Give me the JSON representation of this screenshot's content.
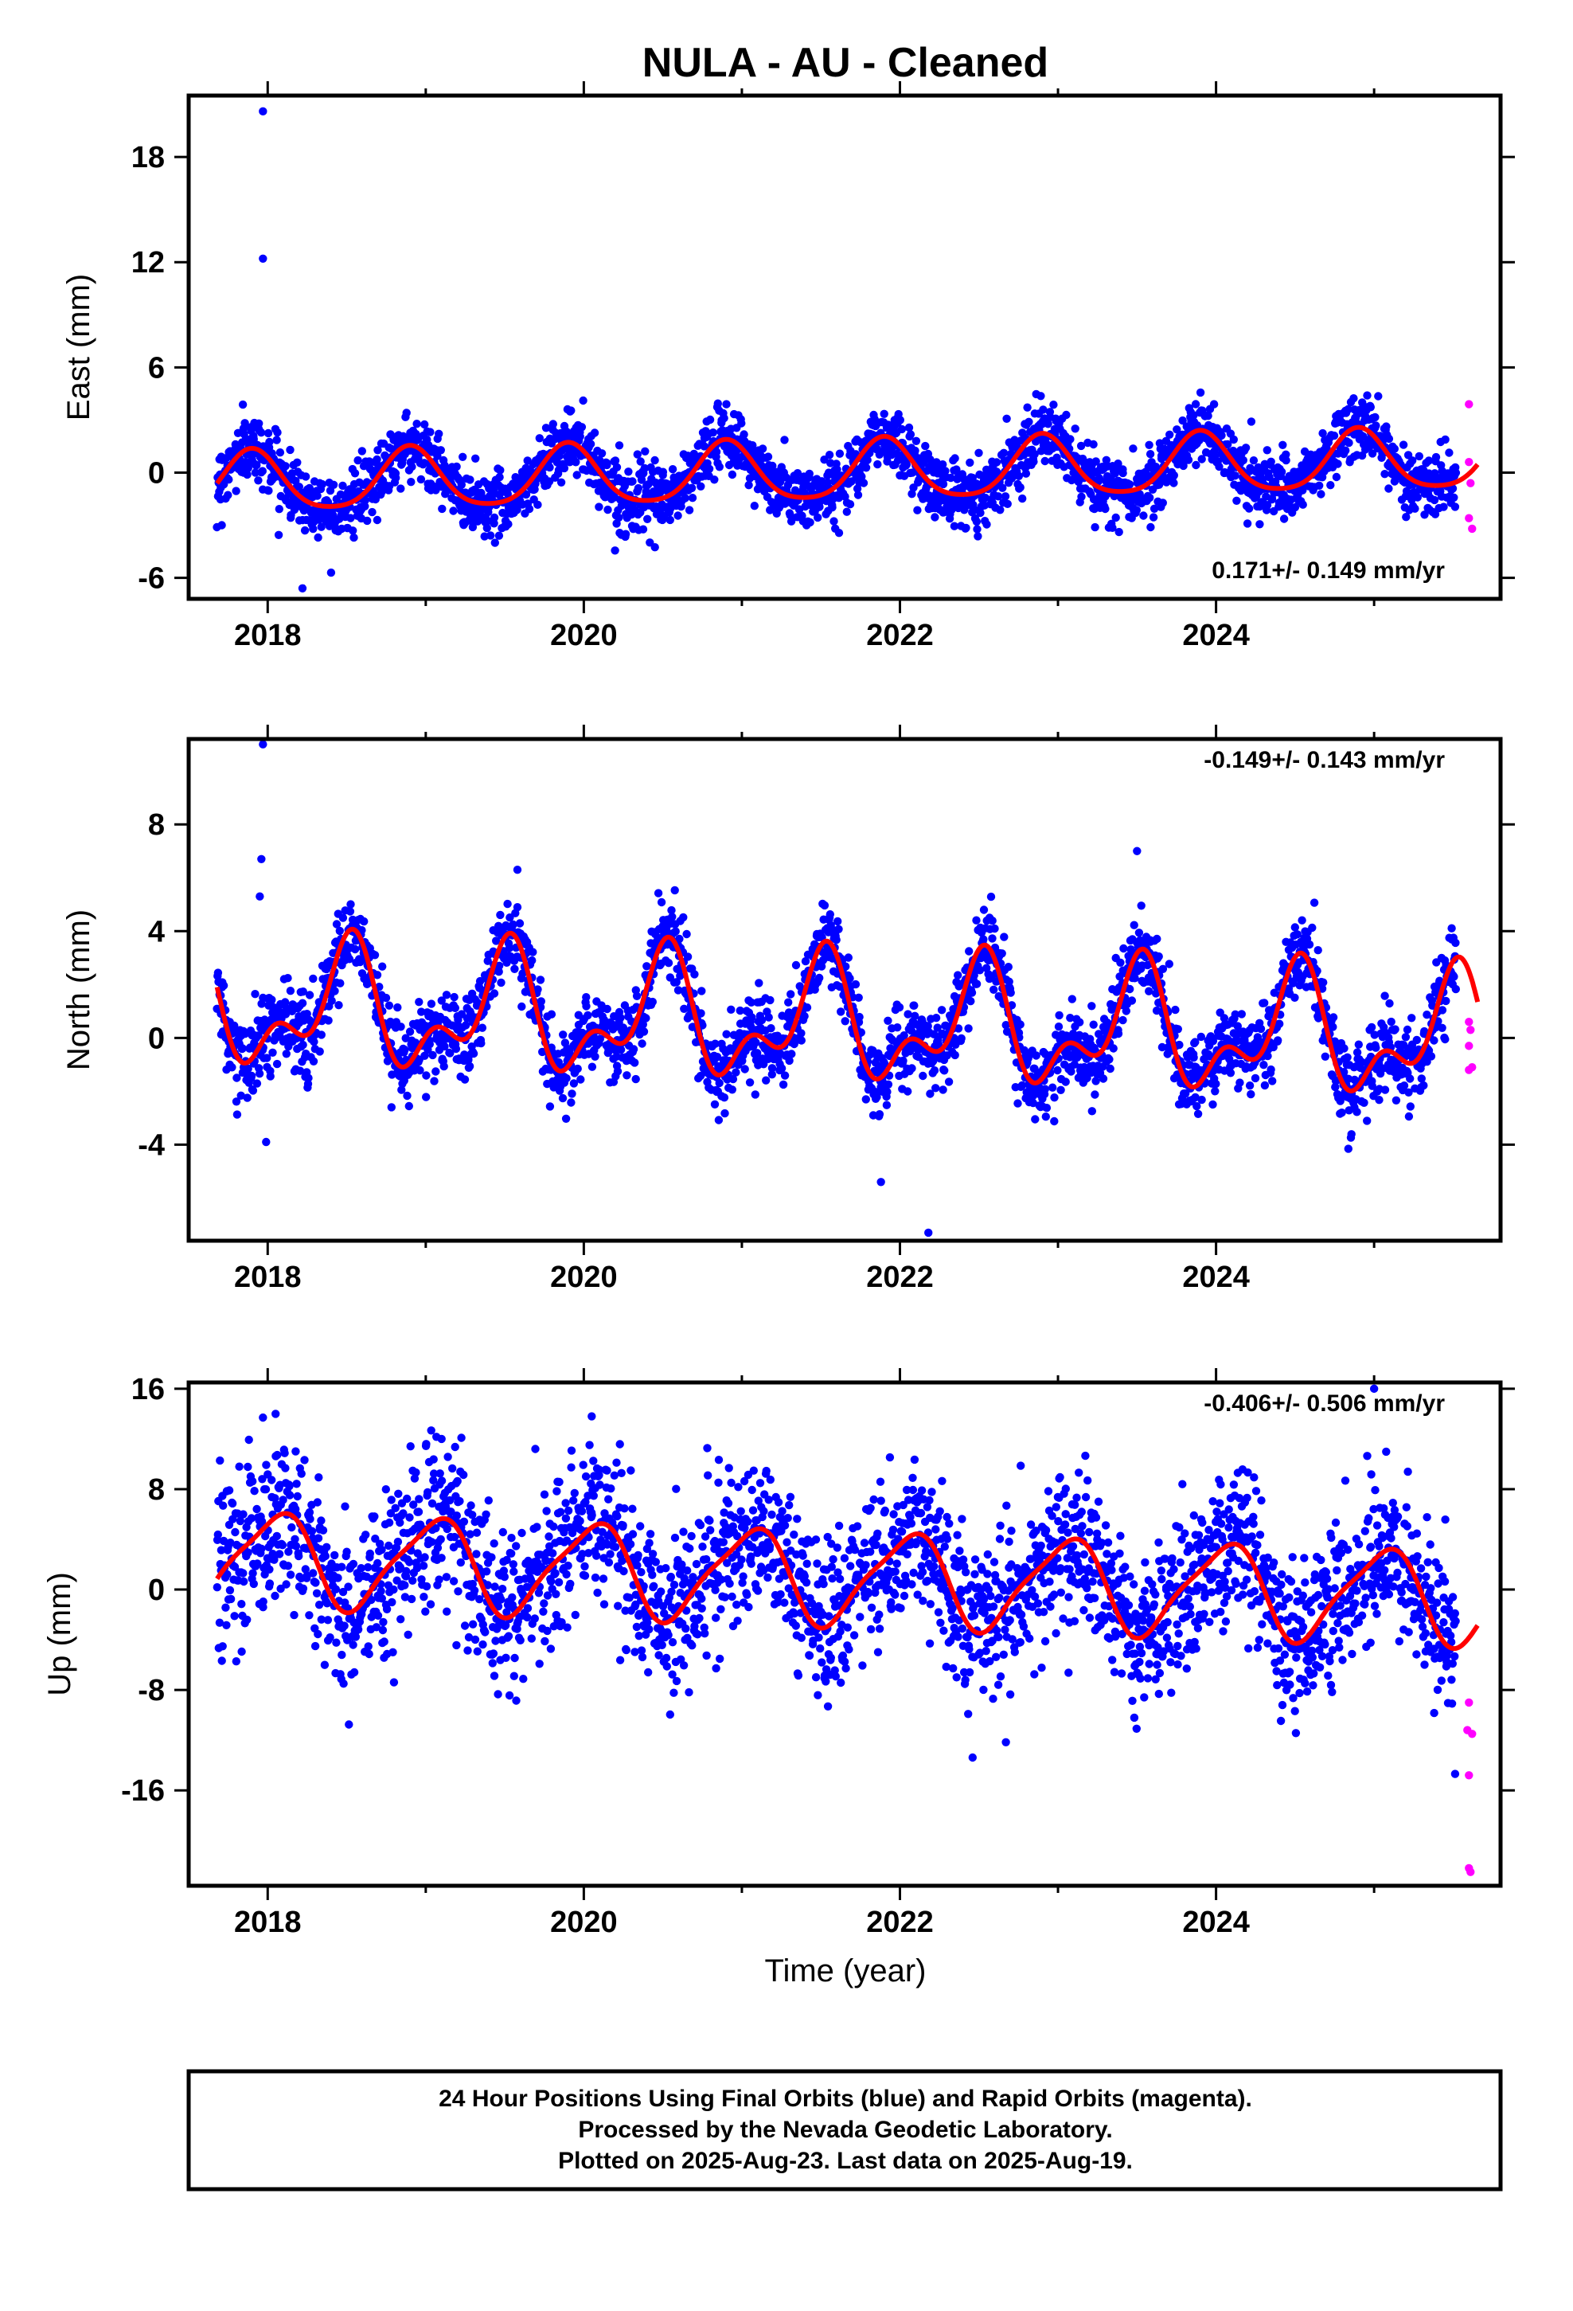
{
  "title": "NULA  - AU - Cleaned",
  "xlabel": "Time (year)",
  "x_ticks": [
    "2018",
    "2020",
    "2022",
    "2024"
  ],
  "colors": {
    "final": "#0000ff",
    "rapid": "#ff00ff",
    "model": "#ff0000",
    "axis": "#000000"
  },
  "footer": {
    "line1": "24 Hour Positions Using Final Orbits (blue) and Rapid Orbits (magenta).",
    "line2": "Processed by the Nevada Geodetic Laboratory.",
    "line3": "Plotted on 2025-Aug-23. Last data on 2025-Aug-19."
  },
  "chart_data": [
    {
      "type": "scatter",
      "component": "east",
      "ylabel": "East (mm)",
      "rate": "0.171+/- 0.149 mm/yr",
      "xlim": [
        2017.5,
        2025.8
      ],
      "ylim": [
        -7.2,
        21.5
      ],
      "y_ticks": [
        "18",
        "12",
        "6",
        "0",
        "-6"
      ],
      "y_tick_values": [
        18,
        12,
        6,
        0,
        -6
      ],
      "model": {
        "mean": 0.0,
        "rate": 0.171,
        "annual_amp": 1.7,
        "annual_peak": 2018.9,
        "semi_amp": 0.3,
        "semi_peak": 2018.4,
        "noise": 0.9
      },
      "final_span": [
        2017.68,
        2025.52
      ],
      "outliers": [
        [
          2017.97,
          20.6
        ],
        [
          2017.97,
          12.2
        ],
        [
          2018.22,
          -6.6
        ]
      ],
      "rapid_points": [
        [
          2025.6,
          3.9
        ],
        [
          2025.6,
          0.6
        ],
        [
          2025.61,
          -0.6
        ],
        [
          2025.6,
          -2.6
        ],
        [
          2025.62,
          -3.2
        ]
      ]
    },
    {
      "type": "scatter",
      "component": "north",
      "ylabel": "North (mm)",
      "rate": "-0.149+/- 0.143 mm/yr",
      "xlim": [
        2017.5,
        2025.8
      ],
      "ylim": [
        -7.6,
        11.2
      ],
      "y_ticks": [
        "8",
        "4",
        "0",
        "-4"
      ],
      "y_tick_values": [
        8,
        4,
        0,
        -4
      ],
      "model": {
        "mean": 0.6,
        "rate": -0.149,
        "annual_amp": 1.9,
        "annual_peak": 2018.5,
        "semi_amp": 1.2,
        "semi_peak": 2018.55,
        "noise": 0.75
      },
      "final_span": [
        2017.68,
        2025.52
      ],
      "outliers": [
        [
          2017.97,
          11.0
        ],
        [
          2017.96,
          6.7
        ],
        [
          2017.95,
          5.3
        ],
        [
          2017.99,
          -3.9
        ],
        [
          2021.88,
          -5.4
        ],
        [
          2022.18,
          -7.3
        ],
        [
          2019.58,
          6.3
        ],
        [
          2023.5,
          7.0
        ]
      ],
      "rapid_points": [
        [
          2025.6,
          0.6
        ],
        [
          2025.61,
          0.3
        ],
        [
          2025.6,
          -0.3
        ],
        [
          2025.62,
          -1.1
        ],
        [
          2025.6,
          -1.2
        ]
      ]
    },
    {
      "type": "scatter",
      "component": "up",
      "ylabel": "Up (mm)",
      "rate": "-0.406+/- 0.506 mm/yr",
      "xlim": [
        2017.5,
        2025.8
      ],
      "ylim": [
        -23.6,
        16.5
      ],
      "y_ticks": [
        "16",
        "8",
        "0",
        "-8",
        "-16"
      ],
      "y_tick_values": [
        16,
        8,
        0,
        -8,
        -16
      ],
      "model": {
        "mean": 1.0,
        "rate": -0.406,
        "annual_amp": 3.6,
        "annual_peak": 2019.05,
        "semi_amp": 0.8,
        "semi_peak": 2018.7,
        "noise": 3.2
      },
      "final_span": [
        2017.68,
        2025.52
      ],
      "outliers": [
        [
          2025.0,
          16.0
        ],
        [
          2020.05,
          13.8
        ],
        [
          2017.97,
          13.7
        ],
        [
          2018.05,
          14.0
        ],
        [
          2019.1,
          12.0
        ]
      ],
      "rapid_points": [
        [
          2025.6,
          -9.0
        ],
        [
          2025.59,
          -11.2
        ],
        [
          2025.62,
          -11.5
        ],
        [
          2025.6,
          -14.8
        ],
        [
          2025.6,
          -22.2
        ],
        [
          2025.61,
          -22.5
        ]
      ]
    }
  ]
}
